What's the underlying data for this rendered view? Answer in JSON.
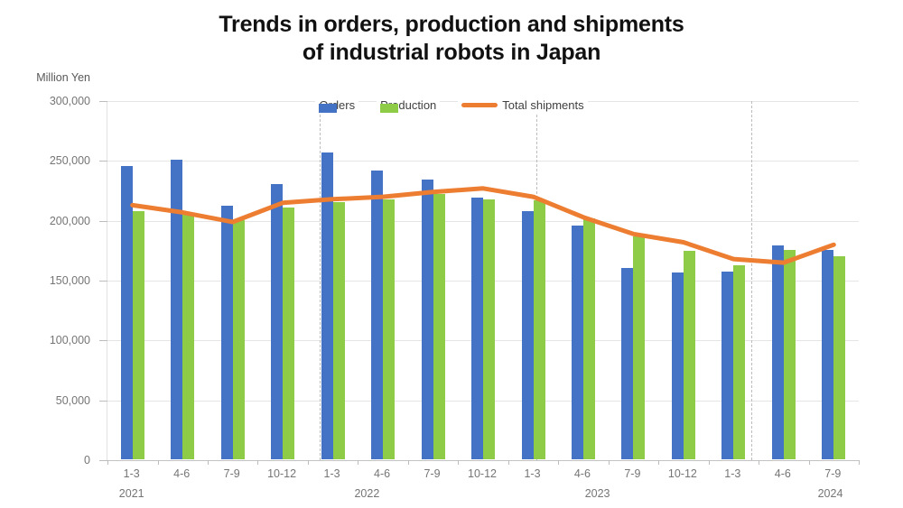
{
  "title": {
    "line1": "Trends in orders, production and shipments",
    "line2": "of industrial robots in Japan"
  },
  "y_axis": {
    "unit_label": "Million Yen"
  },
  "legend": [
    {
      "label": "Orders",
      "type": "bar",
      "color": "#4472c4"
    },
    {
      "label": "Production",
      "type": "bar",
      "color": "#8ecb46"
    },
    {
      "label": "Total shipments",
      "type": "line",
      "color": "#ed7d31"
    }
  ],
  "chart_data": {
    "type": "bar",
    "title": "Trends in orders, production and shipments of industrial robots in Japan",
    "ylabel": "Million Yen",
    "xlabel": "",
    "grid": "horizontal",
    "legend_position": "top",
    "ylim": [
      0,
      300000
    ],
    "y_ticks": [
      300000,
      250000,
      200000,
      150000,
      100000,
      50000,
      0
    ],
    "y_tick_labels": [
      "300,000",
      "250,000",
      "200,000",
      "150,000",
      "100,000",
      "50,000",
      "0"
    ],
    "categories": [
      "1-3",
      "4-6",
      "7-9",
      "10-12",
      "1-3",
      "4-6",
      "7-9",
      "10-12",
      "1-3",
      "4-6",
      "7-9",
      "10-12",
      "1-3",
      "4-6",
      "7-9"
    ],
    "year_labels": [
      {
        "text": "2021",
        "slot": 0
      },
      {
        "text": "2022",
        "slot": 4.7
      },
      {
        "text": "2023",
        "slot": 9.3
      },
      {
        "text": "2024",
        "slot": 13.95
      }
    ],
    "separators_frac": [
      0.282,
      0.571,
      0.857
    ],
    "series": [
      {
        "name": "Orders",
        "type": "bar",
        "color": "#4472c4",
        "values": [
          245000,
          250000,
          212000,
          230000,
          256000,
          241000,
          234000,
          219000,
          207000,
          195000,
          160000,
          156000,
          157000,
          179000,
          175000
        ]
      },
      {
        "name": "Production",
        "type": "bar",
        "color": "#8ecb46",
        "values": [
          207000,
          206000,
          200000,
          210000,
          215000,
          217000,
          222000,
          217000,
          216000,
          201000,
          186000,
          174000,
          162000,
          175000,
          170000
        ]
      },
      {
        "name": "Total shipments",
        "type": "line",
        "color": "#ed7d31",
        "values": [
          213000,
          207000,
          199000,
          215000,
          218000,
          220000,
          224000,
          227000,
          220000,
          203000,
          189000,
          182000,
          168000,
          165000,
          180000
        ]
      }
    ]
  }
}
